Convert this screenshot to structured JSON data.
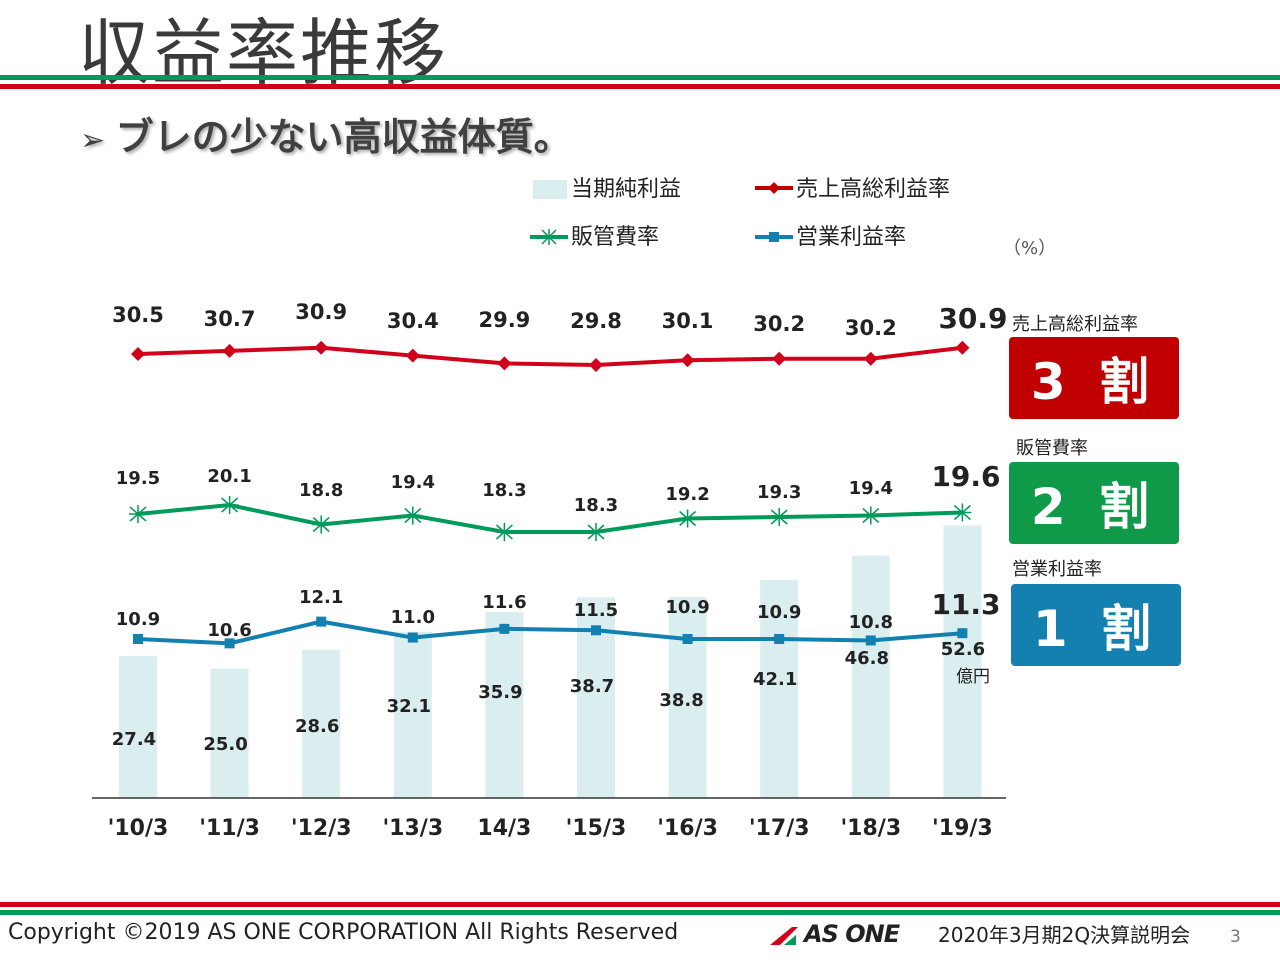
{
  "header": {
    "title": "収益率推移",
    "subtitle": "ブレの少ない高収益体質。",
    "bullet_icon": "arrowhead-icon"
  },
  "colors": {
    "green": "#009a5a",
    "red": "#c00000",
    "blue": "#1380b0",
    "bar": "#daeef0",
    "line_red": "#d0021b"
  },
  "legend": {
    "net_income": "当期純利益",
    "gross_margin": "売上高総利益率",
    "sga_ratio": "販管費率",
    "operating_margin": "営業利益率",
    "unit": "（%）"
  },
  "chart_data": {
    "type": "bar+line",
    "categories": [
      "'10/3",
      "'11/3",
      "'12/3",
      "'13/3",
      "14/3",
      "'15/3",
      "'16/3",
      "'17/3",
      "'18/3",
      "'19/3"
    ],
    "series": [
      {
        "name": "当期純利益",
        "type": "bar",
        "values": [
          27.4,
          25.0,
          28.6,
          32.1,
          35.9,
          38.7,
          38.8,
          42.1,
          46.8,
          52.6
        ],
        "unit": "億円"
      },
      {
        "name": "売上高総利益率",
        "type": "line",
        "values": [
          30.5,
          30.7,
          30.9,
          30.4,
          29.9,
          29.8,
          30.1,
          30.2,
          30.2,
          30.9
        ]
      },
      {
        "name": "販管費率",
        "type": "line",
        "values": [
          19.5,
          20.1,
          18.8,
          19.4,
          18.3,
          18.3,
          19.2,
          19.3,
          19.4,
          19.6
        ]
      },
      {
        "name": "営業利益率",
        "type": "line",
        "values": [
          10.9,
          10.6,
          12.1,
          11.0,
          11.6,
          11.5,
          10.9,
          10.9,
          10.8,
          11.3
        ]
      }
    ]
  },
  "side": {
    "gross_label": "売上高総利益率",
    "gross_box": "3 割",
    "sga_label": "販管費率",
    "sga_box": "2 割",
    "op_label": "営業利益率",
    "op_box": "1 割"
  },
  "footer": {
    "copyright": "Copyright ©2019 AS ONE CORPORATION All Rights Reserved",
    "logo": "AS ONE",
    "event": "2020年3月期2Q決算説明会",
    "page": "3"
  }
}
